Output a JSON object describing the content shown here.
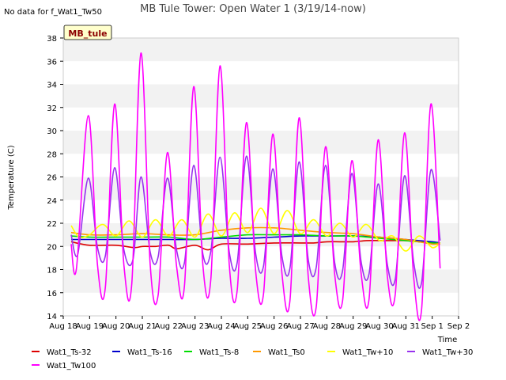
{
  "chart_data": {
    "type": "line",
    "title": "MB Tule Tower: Open Water 1 (3/19/14-now)",
    "no_data_note": "No data for f_Wat1_Tw50",
    "site_badge": "MB_tule",
    "xlabel": "Time",
    "ylabel": "Temperature (C)",
    "ylim": [
      14,
      38
    ],
    "yticks": [
      14,
      16,
      18,
      20,
      22,
      24,
      26,
      28,
      30,
      32,
      34,
      36,
      38
    ],
    "xlim": [
      0,
      15
    ],
    "xtick_labels": [
      "Aug 18",
      "Aug 19",
      "Aug 20",
      "Aug 21",
      "Aug 22",
      "Aug 23",
      "Aug 24",
      "Aug 25",
      "Aug 26",
      "Aug 27",
      "Aug 28",
      "Aug 29",
      "Aug 30",
      "Aug 31",
      "Sep 1",
      "Sep 2"
    ],
    "series": [
      {
        "name": "Wat1_Ts-32",
        "color": "#dd0000",
        "x": [
          0.3,
          1,
          2,
          2.7,
          3,
          3.5,
          4,
          4.3,
          5,
          5.5,
          6,
          7,
          8,
          9,
          9.5,
          10,
          10.5,
          11,
          11.5,
          12,
          12.5,
          13,
          13.5,
          14,
          14.3
        ],
        "values": [
          20.4,
          20.1,
          20.1,
          19.9,
          20.0,
          20.0,
          20.1,
          19.8,
          20.1,
          19.7,
          20.2,
          20.2,
          20.3,
          20.3,
          20.3,
          20.4,
          20.4,
          20.4,
          20.5,
          20.5,
          20.5,
          20.5,
          20.4,
          20.3,
          20.2
        ]
      },
      {
        "name": "Wat1_Ts-16",
        "color": "#0000cc",
        "x": [
          0.3,
          1,
          2,
          3,
          4,
          5,
          6,
          7,
          8,
          9,
          10,
          11,
          12,
          13,
          14,
          14.3
        ],
        "values": [
          20.6,
          20.6,
          20.6,
          20.6,
          20.6,
          20.6,
          20.7,
          20.7,
          20.8,
          20.9,
          20.9,
          20.9,
          20.8,
          20.6,
          20.4,
          20.3
        ]
      },
      {
        "name": "Wat1_Ts-8",
        "color": "#00dd00",
        "x": [
          0.3,
          1,
          2,
          3,
          4,
          5,
          6,
          7,
          8,
          9,
          10,
          11,
          12,
          13,
          14,
          14.3
        ],
        "values": [
          20.9,
          20.8,
          20.8,
          20.8,
          20.8,
          20.6,
          20.8,
          21.0,
          21.0,
          21.0,
          20.9,
          20.9,
          20.7,
          20.5,
          20.3,
          20.3
        ]
      },
      {
        "name": "Wat1_Ts0",
        "color": "#ff9900",
        "x": [
          0.3,
          1,
          2,
          3,
          4,
          5,
          6,
          7,
          8,
          9,
          10,
          11,
          12,
          13,
          14,
          14.3
        ],
        "values": [
          21.2,
          21.0,
          21.0,
          21.1,
          21.0,
          21.0,
          21.4,
          21.6,
          21.6,
          21.4,
          21.2,
          21.1,
          20.8,
          20.6,
          20.2,
          20.3
        ]
      },
      {
        "name": "Wat1_Tw+10",
        "color": "#ffff00",
        "x": [
          0.3,
          0.6,
          1.0,
          1.5,
          2.0,
          2.5,
          3.0,
          3.5,
          4.0,
          4.5,
          5.0,
          5.5,
          6.0,
          6.5,
          7.0,
          7.5,
          8.0,
          8.5,
          9.0,
          9.5,
          10.0,
          10.5,
          11.0,
          11.5,
          12.0,
          12.5,
          13.0,
          13.5,
          14.0,
          14.3
        ],
        "values": [
          21.8,
          20.8,
          21.0,
          21.9,
          20.9,
          22.2,
          20.8,
          22.3,
          20.9,
          22.3,
          20.8,
          22.8,
          20.9,
          22.9,
          21.2,
          23.3,
          21.1,
          23.1,
          21.1,
          22.3,
          20.9,
          22.0,
          20.8,
          21.9,
          20.5,
          20.9,
          19.6,
          20.9,
          19.9,
          20.3
        ]
      },
      {
        "name": "Wat1_Tw+30",
        "color": "#9933ee",
        "x": [
          0.3,
          0.55,
          0.95,
          1.3,
          1.6,
          1.95,
          2.3,
          2.65,
          2.95,
          3.3,
          3.6,
          3.95,
          4.3,
          4.6,
          4.95,
          5.3,
          5.6,
          5.95,
          6.3,
          6.6,
          6.95,
          7.3,
          7.6,
          7.95,
          8.3,
          8.6,
          8.95,
          9.3,
          9.6,
          9.95,
          10.3,
          10.6,
          10.95,
          11.3,
          11.6,
          11.95,
          12.3,
          12.6,
          12.95,
          13.3,
          13.6,
          13.95,
          14.3
        ],
        "values": [
          21.0,
          19.3,
          25.9,
          19.9,
          19.2,
          26.8,
          19.7,
          18.9,
          26.0,
          19.5,
          19.1,
          25.9,
          19.7,
          18.6,
          27.0,
          19.3,
          19.6,
          27.7,
          19.5,
          18.6,
          27.8,
          19.4,
          18.3,
          26.7,
          19.1,
          18.1,
          27.3,
          18.8,
          18.2,
          27.0,
          18.6,
          17.9,
          26.3,
          18.7,
          17.6,
          25.4,
          18.4,
          17.2,
          26.1,
          18.6,
          16.9,
          26.6,
          20.5
        ]
      },
      {
        "name": "Wat1_Tw100",
        "color": "#ff00ff",
        "x": [
          0.3,
          0.5,
          0.95,
          1.3,
          1.6,
          1.95,
          2.3,
          2.6,
          2.95,
          3.3,
          3.6,
          3.95,
          4.3,
          4.6,
          4.95,
          5.3,
          5.6,
          5.95,
          6.3,
          6.6,
          6.95,
          7.3,
          7.6,
          7.95,
          8.3,
          8.6,
          8.95,
          9.3,
          9.6,
          9.95,
          10.3,
          10.6,
          10.95,
          11.3,
          11.6,
          11.95,
          12.3,
          12.6,
          12.95,
          13.3,
          13.6,
          13.95,
          14.3
        ],
        "values": [
          20.2,
          18.1,
          31.3,
          18.4,
          16.5,
          32.3,
          18.4,
          16.8,
          36.7,
          18.4,
          15.8,
          28.1,
          18.3,
          16.6,
          33.8,
          18.3,
          17.2,
          35.6,
          18.4,
          16.2,
          30.7,
          17.9,
          15.9,
          29.7,
          17.6,
          15.3,
          31.1,
          17.3,
          14.8,
          28.6,
          17.6,
          15.3,
          27.4,
          17.7,
          15.4,
          29.2,
          17.4,
          15.9,
          29.8,
          17.3,
          14.6,
          32.3,
          18.1
        ]
      }
    ],
    "legend": [
      "Wat1_Ts-32",
      "Wat1_Ts-16",
      "Wat1_Ts-8",
      "Wat1_Ts0",
      "Wat1_Tw+10",
      "Wat1_Tw+30",
      "Wat1_Tw100"
    ],
    "grid": "horizontal bands",
    "legend_placement": "bottom"
  }
}
